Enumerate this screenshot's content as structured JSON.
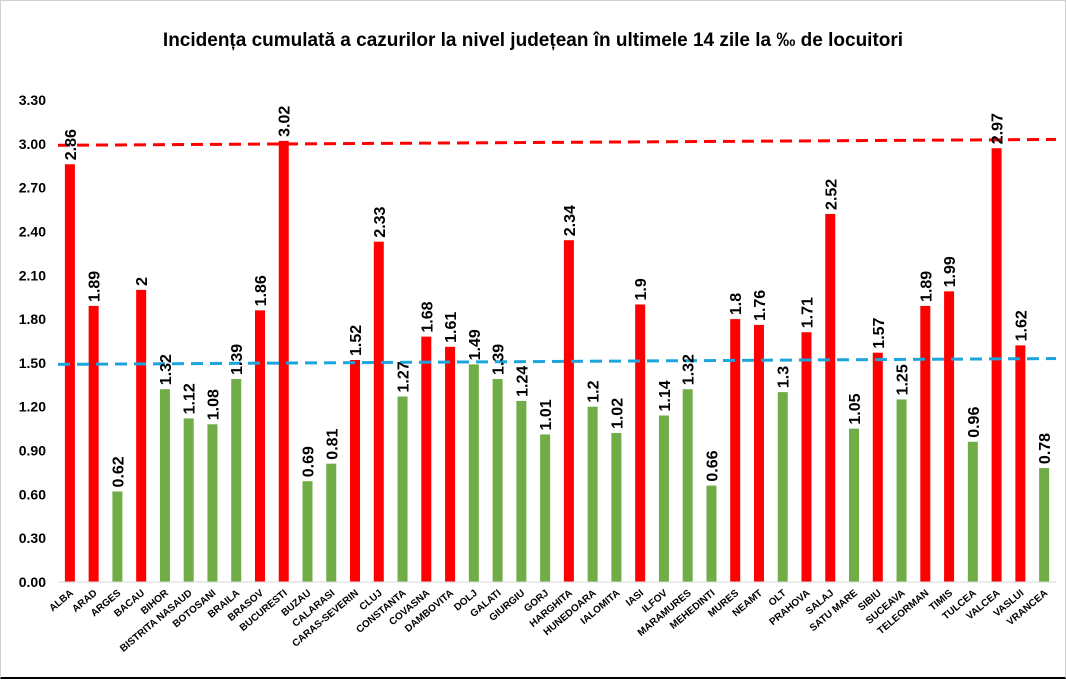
{
  "chart_data": {
    "type": "bar",
    "title": "Incidența cumulată a cazurilor la nivel județean în ultimele 14 zile la ‰ de locuitori",
    "xlabel": "",
    "ylabel": "",
    "ylim": [
      0,
      3.3
    ],
    "yticks": [
      "0.00",
      "0.30",
      "0.60",
      "0.90",
      "1.20",
      "1.50",
      "1.80",
      "2.10",
      "2.40",
      "2.70",
      "3.00",
      "3.30"
    ],
    "grid": false,
    "legend": "none",
    "categories": [
      "ALBA",
      "ARAD",
      "ARGES",
      "BACAU",
      "BIHOR",
      "BISTRITA NASAUD",
      "BOTOSANI",
      "BRAILA",
      "BRASOV",
      "BUCURESTI",
      "BUZAU",
      "CALARASI",
      "CARAS-SEVERIN",
      "CLUJ",
      "CONSTANTA",
      "COVASNA",
      "DAMBOVITA",
      "DOLJ",
      "GALATI",
      "GIURGIU",
      "GORJ",
      "HARGHITA",
      "HUNEDOARA",
      "IALOMITA",
      "IASI",
      "ILFOV",
      "MARAMURES",
      "MEHEDINTI",
      "MURES",
      "NEAMT",
      "OLT",
      "PRAHOVA",
      "SALAJ",
      "SATU MARE",
      "SIBIU",
      "SUCEAVA",
      "TELEORMAN",
      "TIMIS",
      "TULCEA",
      "VALCEA",
      "VASLUI",
      "VRANCEA"
    ],
    "values": [
      2.86,
      1.89,
      0.62,
      2,
      1.32,
      1.12,
      1.08,
      1.39,
      1.86,
      3.02,
      0.69,
      0.81,
      1.52,
      2.33,
      1.27,
      1.68,
      1.61,
      1.49,
      1.39,
      1.24,
      1.01,
      2.34,
      1.2,
      1.02,
      1.9,
      1.14,
      1.32,
      0.66,
      1.8,
      1.76,
      1.3,
      1.71,
      2.52,
      1.05,
      1.57,
      1.25,
      1.89,
      1.99,
      0.96,
      2.97,
      1.62,
      0.78
    ],
    "data_labels": [
      "2.86",
      "1.89",
      "0.62",
      "2",
      "1.32",
      "1.12",
      "1.08",
      "1.39",
      "1.86",
      "3.02",
      "0.69",
      "0.81",
      "1.52",
      "2.33",
      "1.27",
      "1.68",
      "1.61",
      "1.49",
      "1.39",
      "1.24",
      "1.01",
      "2.34",
      "1.2",
      "1.02",
      "1.9",
      "1.14",
      "1.32",
      "0.66",
      "1.8",
      "1.76",
      "1.3",
      "1.71",
      "2.52",
      "1.05",
      "1.57",
      "1.25",
      "1.89",
      "1.99",
      "0.96",
      "2.97",
      "1.62",
      "0.78"
    ],
    "colors": {
      "above_threshold": "#ff0000",
      "below_threshold": "#70ad47"
    },
    "color_threshold": 1.5,
    "reference_lines": [
      {
        "y_start": 2.99,
        "y_end": 3.03,
        "color": "#ff0000",
        "style": "dashed"
      },
      {
        "y_start": 1.49,
        "y_end": 1.53,
        "color": "#1ca4dc",
        "style": "dashed"
      }
    ]
  }
}
